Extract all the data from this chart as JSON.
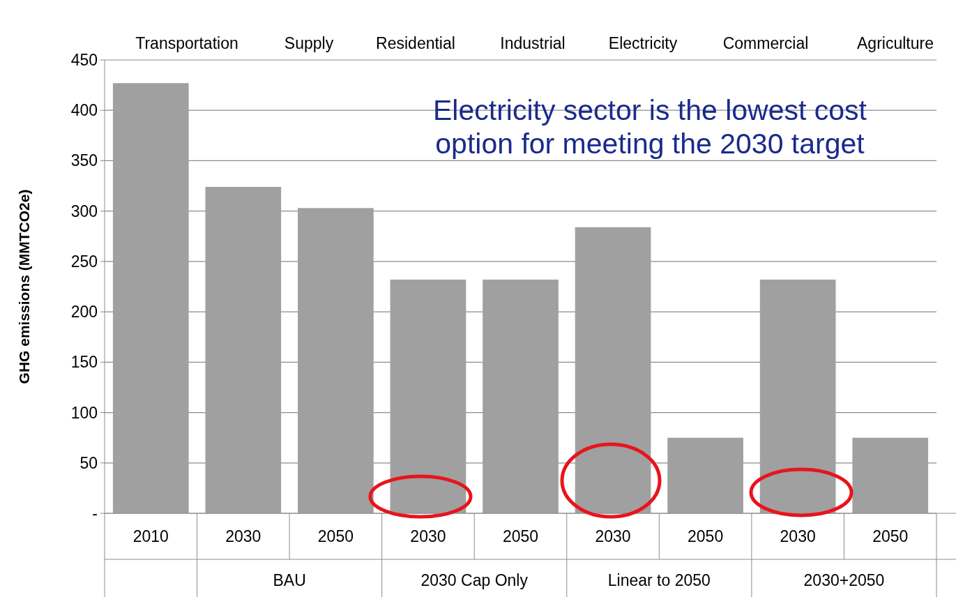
{
  "chart_data": {
    "type": "bar",
    "ylabel": "GHG emissions (MMTCO2e)",
    "categories": [
      "2010",
      "2030",
      "2050",
      "2030",
      "2050",
      "2030",
      "2050",
      "2030",
      "2050"
    ],
    "values": [
      427,
      324,
      303,
      232,
      232,
      284,
      75,
      232,
      75
    ],
    "color": "#a0a0a0",
    "ylim": [
      0,
      450
    ],
    "yticks": [
      {
        "value": 0,
        "label": "-"
      },
      50,
      100,
      150,
      200,
      250,
      300,
      350,
      400,
      450
    ],
    "grid": "y",
    "annotations": [
      "Electricity sector is the lowest cost option for meeting the 2030 target",
      "Transportation",
      "Supply",
      "Residential",
      "Industrial",
      "Electricity",
      "Commercial",
      "Agriculture",
      "BAU",
      "2030 Cap Only",
      "Linear to 2050",
      "2030+2050"
    ]
  }
}
